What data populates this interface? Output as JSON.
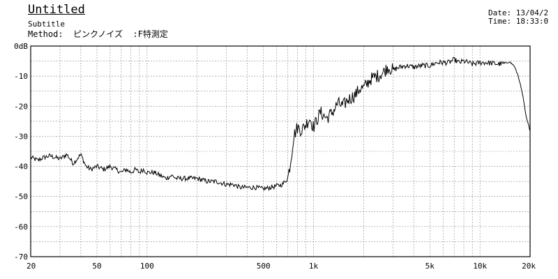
{
  "header": {
    "title": "Untitled",
    "subtitle": "Subtitle",
    "method": "Method:  ピンクノイズ  :F特測定",
    "date": "Date: 13/04/2",
    "time": "Time: 18:33:0"
  },
  "chart_data": {
    "type": "line",
    "title": "Untitled",
    "subtitle": "Subtitle",
    "xscale": "log",
    "xlim": [
      20,
      20000
    ],
    "ylim": [
      -70,
      0
    ],
    "grid": true,
    "x_ticks": [
      {
        "value": 20,
        "label": "20"
      },
      {
        "value": 50,
        "label": "50"
      },
      {
        "value": 100,
        "label": "100"
      },
      {
        "value": 500,
        "label": "500"
      },
      {
        "value": 1000,
        "label": "1k"
      },
      {
        "value": 5000,
        "label": "5k"
      },
      {
        "value": 10000,
        "label": "10k"
      },
      {
        "value": 20000,
        "label": "20k"
      }
    ],
    "y_ticks": [
      {
        "value": 0,
        "label": "0dB"
      },
      {
        "value": -10,
        "label": "-10"
      },
      {
        "value": -20,
        "label": "-20"
      },
      {
        "value": -30,
        "label": "-30"
      },
      {
        "value": -40,
        "label": "-40"
      },
      {
        "value": -50,
        "label": "-50"
      },
      {
        "value": -60,
        "label": "-60"
      },
      {
        "value": -70,
        "label": "-70"
      }
    ],
    "series": [
      {
        "x": [
          20,
          22,
          24,
          26,
          28,
          30,
          33,
          36,
          40,
          43,
          46,
          50,
          55,
          60,
          65,
          70,
          75,
          80,
          85,
          90,
          95,
          100,
          110,
          120,
          130,
          140,
          150,
          170,
          200,
          230,
          260,
          300,
          330,
          360,
          400,
          450,
          500,
          550,
          600,
          650,
          700,
          730,
          760,
          800,
          850,
          900,
          950,
          1000,
          1100,
          1200,
          1300,
          1400,
          1500,
          1600,
          1700,
          1800,
          1900,
          2000,
          2200,
          2400,
          2600,
          2800,
          3000,
          3300,
          3600,
          4000,
          4500,
          5000,
          5500,
          6000,
          6500,
          7000,
          7500,
          8000,
          9000,
          10000,
          11000,
          12000,
          13000,
          14000,
          15000,
          16000,
          17000,
          18000,
          19000,
          20000
        ],
        "y": [
          -37,
          -38,
          -37,
          -36.5,
          -37,
          -37.5,
          -36,
          -39,
          -36,
          -40,
          -41,
          -40,
          -41,
          -40,
          -41,
          -42,
          -41,
          -42,
          -41,
          -42,
          -41,
          -42,
          -42,
          -43,
          -44,
          -43,
          -44,
          -44,
          -44,
          -45,
          -45,
          -46,
          -46,
          -47,
          -47,
          -47,
          -47.5,
          -47,
          -46.5,
          -46,
          -44,
          -38,
          -30,
          -27,
          -28,
          -26,
          -24,
          -27,
          -22,
          -24,
          -22,
          -19,
          -20,
          -18,
          -17,
          -16,
          -14,
          -14,
          -11,
          -10,
          -9,
          -7,
          -8,
          -7,
          -6.5,
          -7,
          -6.5,
          -6.5,
          -5.5,
          -5.5,
          -5.5,
          -4.5,
          -5.5,
          -5,
          -6,
          -5.5,
          -5.5,
          -5.8,
          -6,
          -5.8,
          -5.2,
          -6.5,
          -10,
          -16,
          -24,
          -28
        ]
      }
    ]
  }
}
